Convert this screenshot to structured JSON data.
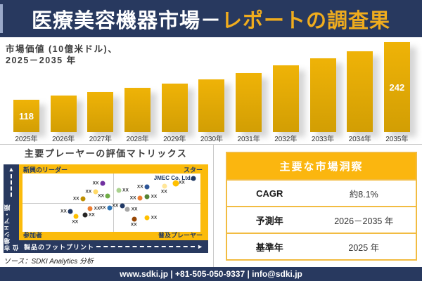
{
  "header": {
    "title_main": "医療美容機器市場",
    "title_dash": "－",
    "title_accent": "レポートの調査果"
  },
  "chart": {
    "subtitle_line1": "市場価値 (10億米ドル)、",
    "subtitle_line2": "2025－2035 年"
  },
  "chart_data": {
    "type": "bar",
    "title": "市場価値 (10億米ドル)、2025－2035 年",
    "categories": [
      "2025年",
      "2026年",
      "2027年",
      "2028年",
      "2029年",
      "2030年",
      "2031年",
      "2032年",
      "2033年",
      "2034年",
      "2035年"
    ],
    "values": [
      118,
      127,
      135,
      144,
      153,
      162,
      175,
      192,
      207,
      222,
      242
    ],
    "data_labels": {
      "2025年": "118",
      "2035年": "242"
    },
    "ylabel": "市場価値 (10億米ドル)",
    "xlabel": "年",
    "legend": "none",
    "grid": false,
    "bar_color": "#E3A806"
  },
  "matrix": {
    "title": "主要プレーヤーの評価マトリックス",
    "quadrants": {
      "top_left": "新興のリーダー",
      "top_right": "スター",
      "bottom_left": "参加者",
      "bottom_right": "普及プレーヤー"
    },
    "y_axis_label": "市場シェア・順位",
    "x_axis_label": "製品のフットプリント",
    "highlight_label": "JMEC Co. Ltd.",
    "point_label": "XX",
    "points": [
      {
        "x": 45,
        "y": 17,
        "color": "#7030A0",
        "side": "left"
      },
      {
        "x": 41,
        "y": 31,
        "color": "#FFD966",
        "side": "left"
      },
      {
        "x": 34,
        "y": 43,
        "color": "#BF8F00",
        "side": "left"
      },
      {
        "x": 48,
        "y": 39,
        "color": "#70AD47",
        "side": "left"
      },
      {
        "x": 54,
        "y": 29,
        "color": "#A9D18E",
        "side": "right"
      },
      {
        "x": 70,
        "y": 23,
        "color": "#2E5597",
        "side": "left"
      },
      {
        "x": 86,
        "y": 17,
        "color": "#FFC000",
        "side": "right",
        "size": 9
      },
      {
        "x": 80,
        "y": 22,
        "color": "#FFE699",
        "side": "below"
      },
      {
        "x": 66,
        "y": 42,
        "color": "#ED7D31",
        "side": "left"
      },
      {
        "x": 70,
        "y": 40,
        "color": "#548235",
        "side": "right"
      },
      {
        "x": 96,
        "y": 8,
        "color": "#1F3864",
        "side": "none",
        "highlight": true
      },
      {
        "x": 27,
        "y": 65,
        "color": "#203864",
        "side": "left"
      },
      {
        "x": 38,
        "y": 60,
        "color": "#ED7D31",
        "side": "right"
      },
      {
        "x": 49,
        "y": 59,
        "color": "#2E75B6",
        "side": "left"
      },
      {
        "x": 30,
        "y": 74,
        "color": "#FFC000",
        "side": "below"
      },
      {
        "x": 35,
        "y": 71,
        "color": "#262626",
        "side": "right"
      },
      {
        "x": 56,
        "y": 55,
        "color": "#203864",
        "side": "left"
      },
      {
        "x": 59,
        "y": 61,
        "color": "#A6A6A6",
        "side": "right"
      },
      {
        "x": 63,
        "y": 78,
        "color": "#984806",
        "side": "below"
      },
      {
        "x": 70,
        "y": 76,
        "color": "#FFC000",
        "side": "right"
      }
    ]
  },
  "insights": {
    "title": "主要な市場洞察",
    "rows": [
      {
        "label": "CAGR",
        "value": "約8.1%"
      },
      {
        "label": "予測年",
        "value": "2026－2035 年"
      },
      {
        "label": "基準年",
        "value": "2025 年"
      }
    ]
  },
  "source": "ソース：SDKI Analytics 分析",
  "footer": {
    "contact": "www.sdki.jp | +81-505-050-9337 | info@sdki.jp"
  },
  "colors": {
    "navy": "#28395F",
    "gold": "#FBBB0C",
    "accent_title": "#EFAC1E",
    "bar_top": "#EFB307",
    "bar_bottom": "#D29E04",
    "table_gold": "#FBB60F",
    "table_border_gold": "#F2BC42",
    "quadrant_text": "#1F3864"
  }
}
